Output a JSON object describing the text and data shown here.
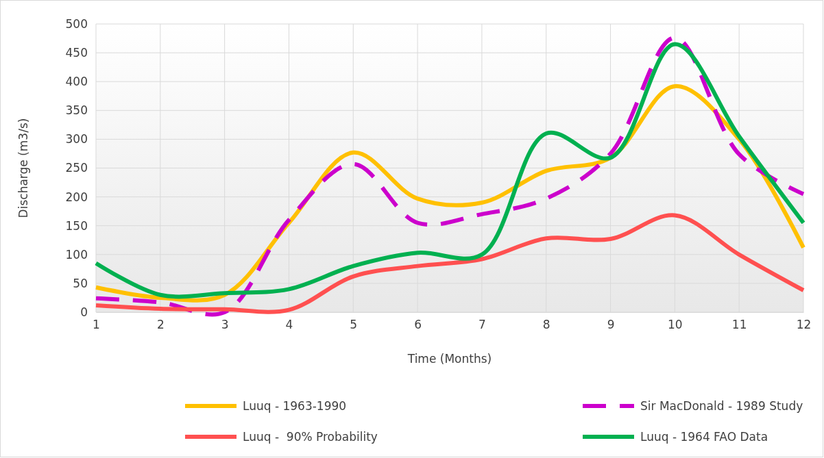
{
  "chart_data": {
    "type": "line",
    "xlabel": "Time (Months)",
    "ylabel": "Discharge (m3/s)",
    "x": [
      1,
      2,
      3,
      4,
      5,
      6,
      7,
      8,
      9,
      10,
      11,
      12
    ],
    "xlim": [
      1,
      12
    ],
    "xticks": [
      1,
      2,
      3,
      4,
      5,
      6,
      7,
      8,
      9,
      10,
      11,
      12
    ],
    "ylim": [
      0,
      500
    ],
    "yticks": [
      0,
      50,
      100,
      150,
      200,
      250,
      300,
      350,
      400,
      450,
      500
    ],
    "grid": true,
    "legend": "bottom",
    "marker": "none",
    "series": [
      {
        "name": "Luuq - 1963-1990",
        "color": "#ffc000",
        "line_style": "solid",
        "values": [
          43,
          25,
          30,
          155,
          277,
          197,
          190,
          245,
          268,
          392,
          300,
          112
        ]
      },
      {
        "name": "Sir MacDonald - 1989 Study",
        "color": "#cc00cc",
        "line_style": "dashed",
        "values": [
          24,
          17,
          0,
          160,
          257,
          155,
          170,
          197,
          275,
          476,
          274,
          205
        ]
      },
      {
        "name": "Luuq -  90% Probability",
        "color": "#ff5050",
        "line_style": "solid",
        "values": [
          12,
          6,
          5,
          4,
          62,
          80,
          92,
          128,
          127,
          168,
          100,
          38
        ]
      },
      {
        "name": "Luuq - 1964 FAO Data",
        "color": "#00b050",
        "line_style": "solid",
        "values": [
          85,
          30,
          33,
          40,
          80,
          103,
          100,
          310,
          268,
          465,
          305,
          155
        ]
      }
    ]
  }
}
